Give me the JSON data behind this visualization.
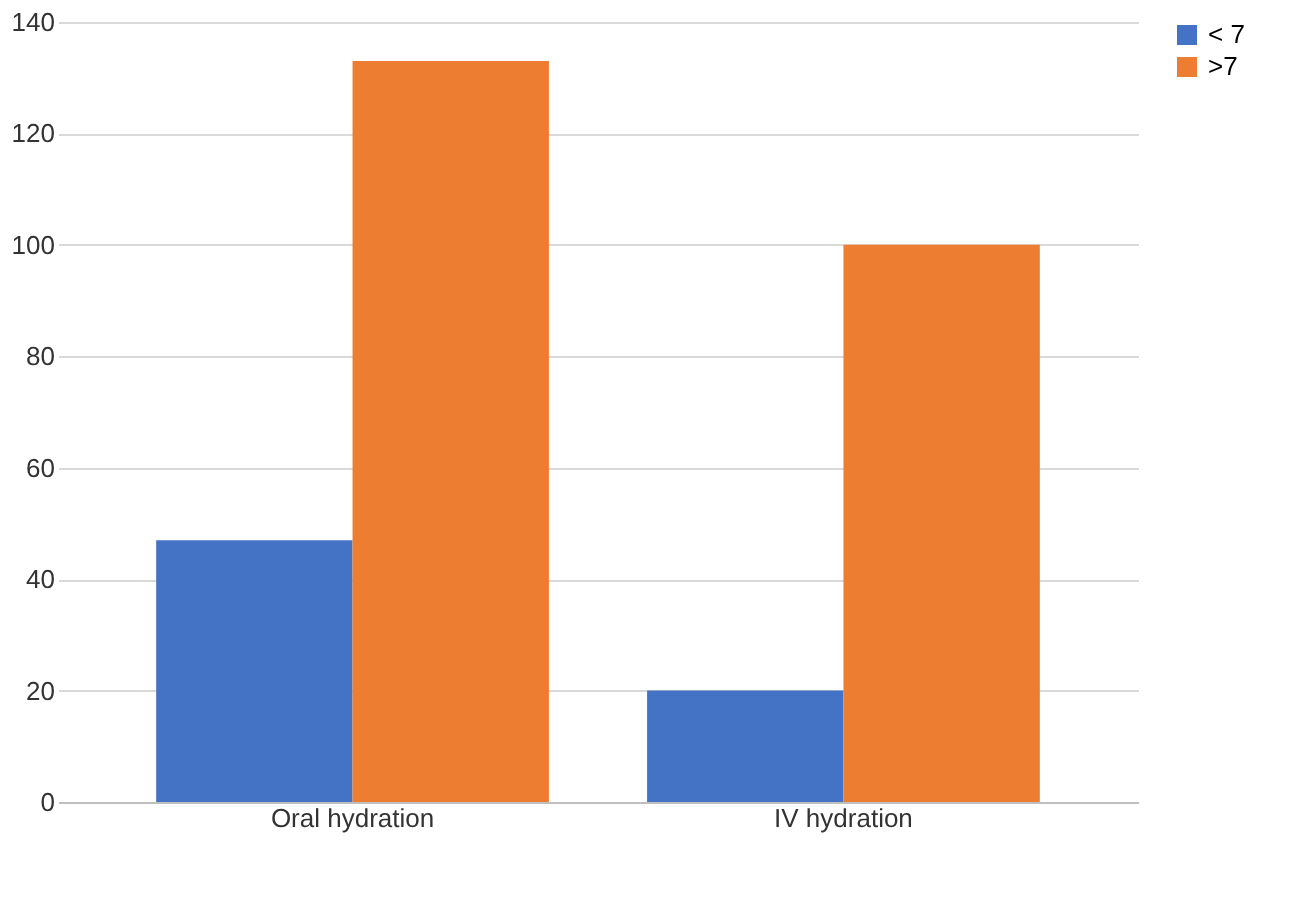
{
  "chart_data": {
    "type": "bar",
    "categories": [
      "Oral hydration",
      "IV hydration"
    ],
    "series": [
      {
        "name": "< 7",
        "color": "#4472c4",
        "values": [
          47,
          20
        ]
      },
      {
        "name": ">7",
        "color": "#ed7d31",
        "values": [
          133,
          100
        ]
      }
    ],
    "ylim": [
      0,
      140
    ],
    "yticks": [
      0,
      20,
      40,
      60,
      80,
      100,
      120,
      140
    ],
    "grid": "y",
    "legend": "right"
  }
}
